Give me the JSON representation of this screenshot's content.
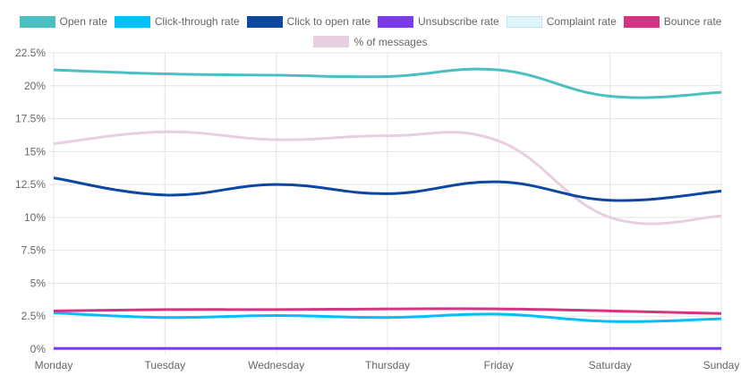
{
  "chart_data": {
    "type": "line",
    "categories": [
      "Monday",
      "Tuesday",
      "Wednesday",
      "Thursday",
      "Friday",
      "Saturday",
      "Sunday"
    ],
    "ylim": [
      0,
      22.5
    ],
    "ytick_labels": [
      "0%",
      "2.5%",
      "5%",
      "7.5%",
      "10%",
      "12.5%",
      "15%",
      "17.5%",
      "20%",
      "22.5%"
    ],
    "grid": true,
    "legend_position": "top",
    "series": [
      {
        "name": "Open rate",
        "color": "#4bc0c0",
        "values": [
          21.2,
          20.9,
          20.8,
          20.7,
          21.2,
          19.2,
          19.5
        ]
      },
      {
        "name": "Click-through rate",
        "color": "#00bfff",
        "values": [
          2.75,
          2.4,
          2.55,
          2.4,
          2.65,
          2.1,
          2.3
        ]
      },
      {
        "name": "Click to open rate",
        "color": "#0d47a1",
        "values": [
          13.0,
          11.7,
          12.5,
          11.8,
          12.7,
          11.3,
          12.0
        ]
      },
      {
        "name": "Unsubscribe rate",
        "color": "#7c3aed",
        "values": [
          0.05,
          0.05,
          0.05,
          0.05,
          0.05,
          0.05,
          0.05
        ]
      },
      {
        "name": "Complaint rate",
        "color": "#e0f4fc",
        "values": [
          0,
          0,
          0,
          0,
          0,
          0,
          0
        ]
      },
      {
        "name": "Bounce rate",
        "color": "#d63384",
        "values": [
          2.9,
          3.0,
          3.0,
          3.05,
          3.05,
          2.9,
          2.7
        ]
      },
      {
        "name": "% of messages",
        "color": "#e8cfe0",
        "values": [
          15.6,
          16.5,
          15.9,
          16.2,
          15.8,
          10.0,
          10.1
        ]
      }
    ]
  }
}
